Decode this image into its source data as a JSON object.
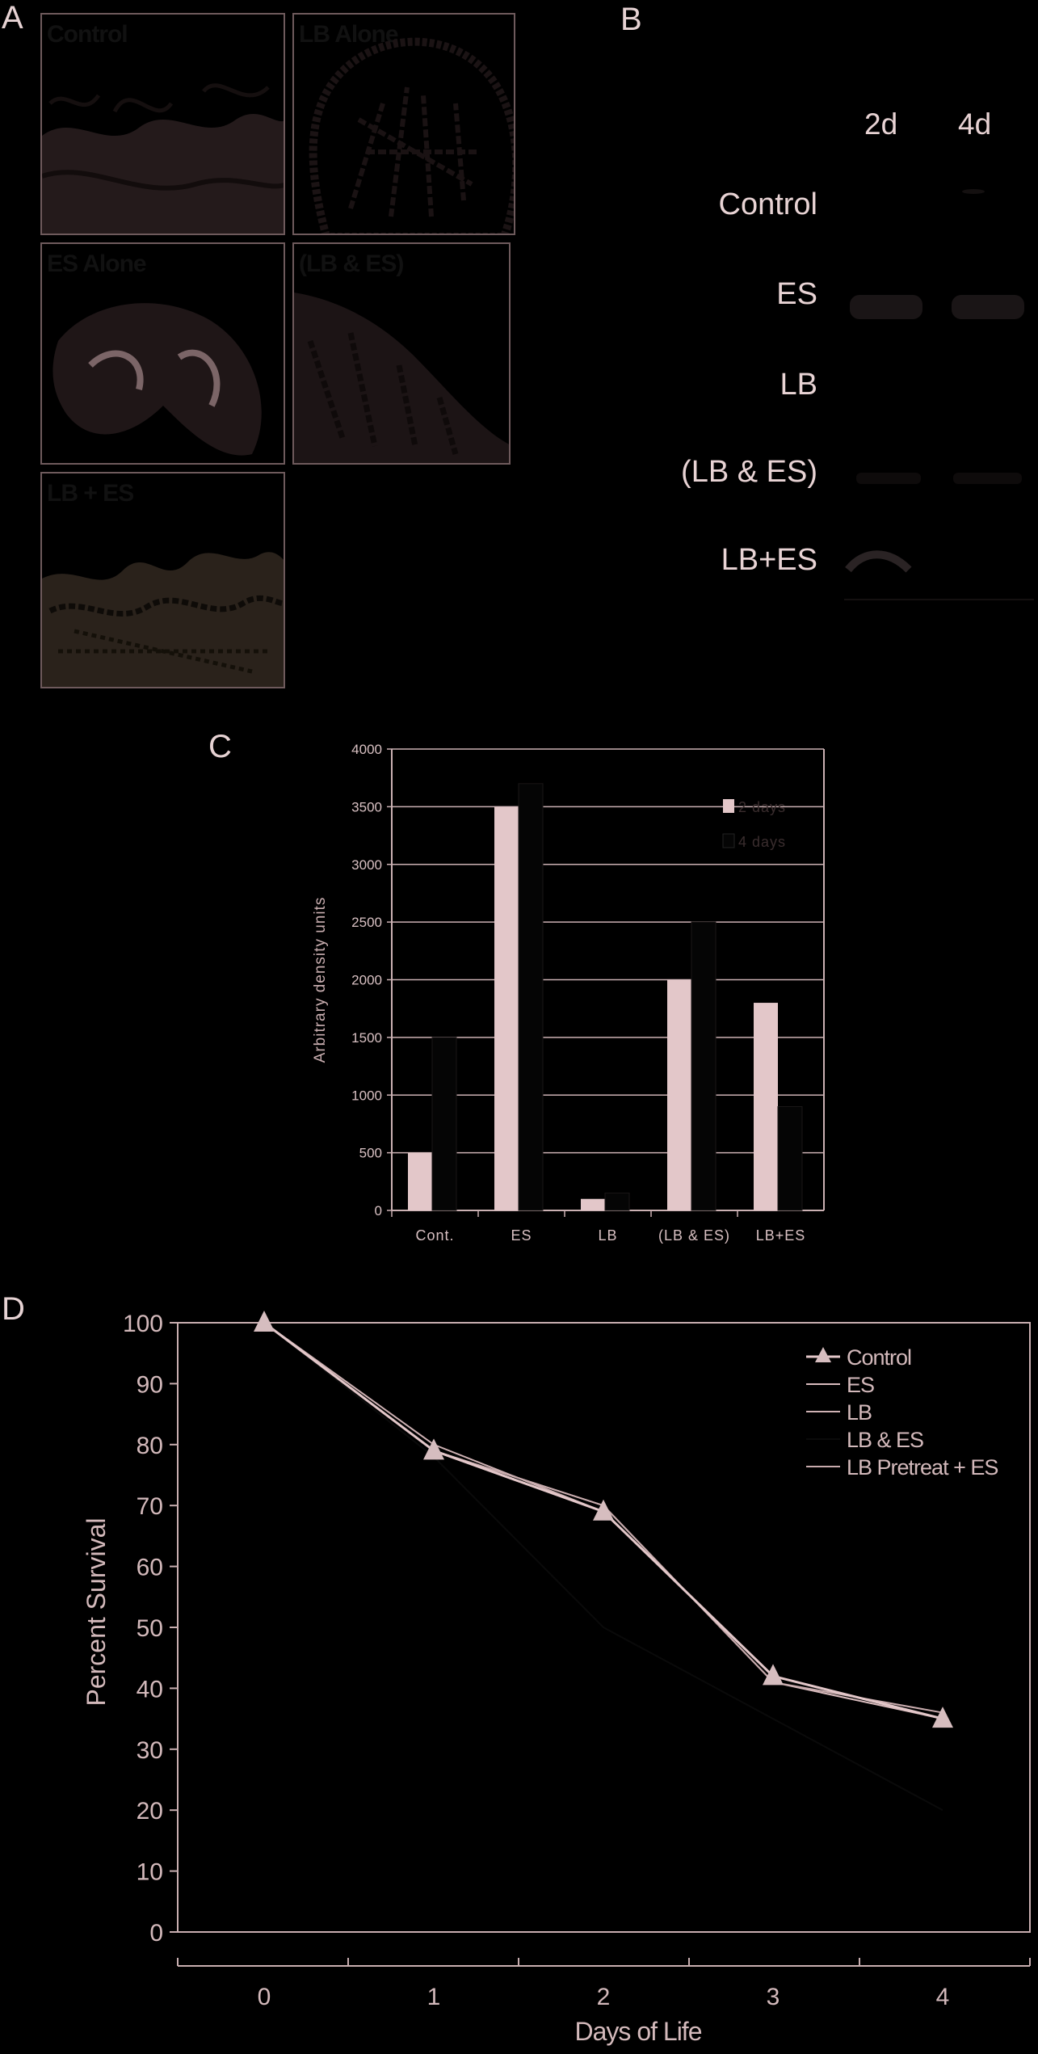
{
  "panels": {
    "a": "A",
    "b": "B",
    "c": "C",
    "d": "D"
  },
  "histology": [
    {
      "label": "Control",
      "bg": "#3a2c2d"
    },
    {
      "label": "LB Alone",
      "bg": "#a7898c"
    },
    {
      "label": "ES Alone",
      "bg": "#7b6567"
    },
    {
      "label": "(LB & ES)",
      "bg": "#3e3233"
    },
    {
      "label": "LB + ES",
      "bg": "#5f5347"
    }
  ],
  "blot": {
    "columns": [
      "2d",
      "4d"
    ],
    "rows": [
      "Control",
      "ES",
      "LB",
      "(LB & ES)",
      "LB+ES"
    ]
  },
  "chart_data": [
    {
      "type": "bar",
      "categories": [
        "Cont.",
        "ES",
        "LB",
        "(LB & ES)",
        "LB+ES"
      ],
      "series": [
        {
          "name": "2 days",
          "values": [
            500,
            3500,
            100,
            2000,
            1800
          ],
          "color": "#e3c7c9"
        },
        {
          "name": "4 days",
          "values": [
            1500,
            3700,
            150,
            2500,
            900
          ],
          "color": "#050505"
        }
      ],
      "ylabel": "Arbitrary density units",
      "yticks": [
        0,
        500,
        1000,
        1500,
        2000,
        2500,
        3000,
        3500,
        4000
      ],
      "ylim": [
        0,
        4000
      ],
      "grid": true,
      "legend": "top-right"
    },
    {
      "type": "line",
      "x": [
        0,
        1,
        2,
        3,
        4
      ],
      "series": [
        {
          "name": "Control",
          "values": [
            100,
            79,
            69,
            42,
            35
          ],
          "color": "#e3c7c9"
        },
        {
          "name": "ES",
          "values": [
            100,
            79,
            70,
            41,
            35
          ],
          "color": "#d9bcbe"
        },
        {
          "name": "LB",
          "values": [
            100,
            80,
            69,
            42,
            35
          ],
          "color": "#cfb2b4"
        },
        {
          "name": "LB & ES",
          "values": [
            100,
            78,
            50,
            35,
            20
          ],
          "color": "#0a0a0a"
        },
        {
          "name": "LB Pretreat + ES",
          "values": [
            100,
            79,
            70,
            41,
            36
          ],
          "color": "#c8abad"
        }
      ],
      "xlabel": "Days of Life",
      "ylabel": "Percent Survival",
      "yticks": [
        0,
        10,
        20,
        30,
        40,
        50,
        60,
        70,
        80,
        90,
        100
      ],
      "ylim": [
        0,
        100
      ],
      "legend": "top-right"
    }
  ]
}
